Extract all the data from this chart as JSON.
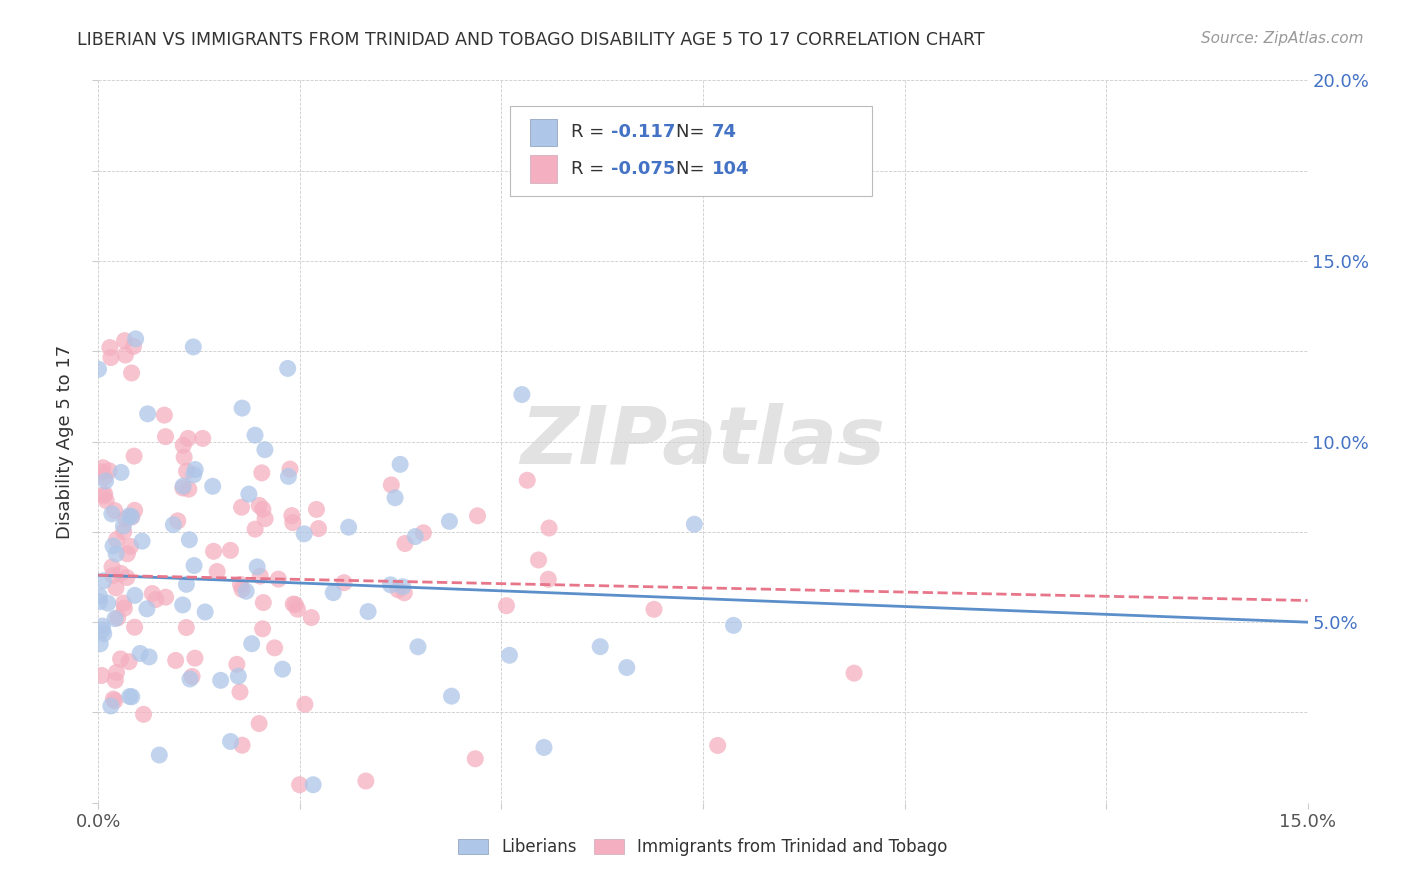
{
  "title": "LIBERIAN VS IMMIGRANTS FROM TRINIDAD AND TOBAGO DISABILITY AGE 5 TO 17 CORRELATION CHART",
  "source": "Source: ZipAtlas.com",
  "ylabel": "Disability Age 5 to 17",
  "xlim": [
    0.0,
    0.15
  ],
  "ylim": [
    0.0,
    0.2
  ],
  "liberian_R": -0.117,
  "liberian_N": 74,
  "tt_R": -0.075,
  "tt_N": 104,
  "liberian_color": "#aec6e8",
  "tt_color": "#f4afc0",
  "trend_line_color_lib": "#5b8fc9",
  "trend_line_color_tt": "#e8768a",
  "watermark": "ZIPatlas",
  "watermark_color": "#d0d0d0",
  "legend_label_lib": "Liberians",
  "legend_label_tt": "Immigrants from Trinidad and Tobago",
  "trend_lib_start": 0.063,
  "trend_lib_end": 0.05,
  "trend_tt_start": 0.063,
  "trend_tt_end": 0.056
}
